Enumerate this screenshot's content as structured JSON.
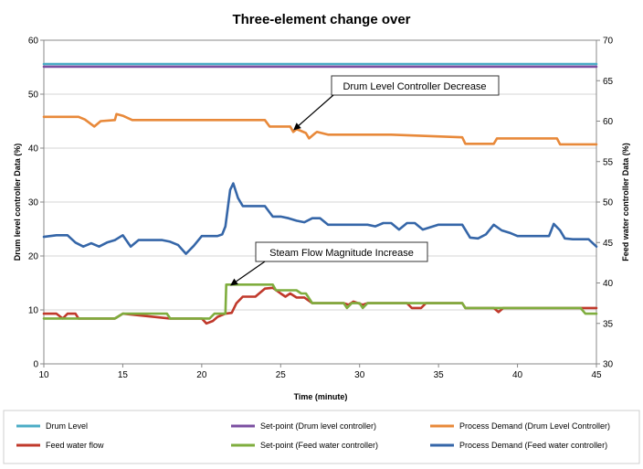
{
  "chart_data": {
    "type": "line",
    "title": "Three-element change over",
    "xlabel": "Time (minute)",
    "ylabel_left": "Drum level controller  Data (%)",
    "ylabel_right": "Feed water controller Data (%)",
    "xlim": [
      10,
      45
    ],
    "ylim_left": [
      0,
      60
    ],
    "ylim_right": [
      30,
      70
    ],
    "x_ticks": [
      10,
      15,
      20,
      25,
      30,
      35,
      40,
      45
    ],
    "y_ticks_left": [
      0,
      10,
      20,
      30,
      40,
      50,
      60
    ],
    "y_ticks_right": [
      30,
      35,
      40,
      45,
      50,
      55,
      60,
      65,
      70
    ],
    "grid": "horizontal",
    "legend_position": "bottom",
    "annotations": [
      {
        "text": "Drum Level Controller Decrease",
        "x": 25.8,
        "y": 43.3,
        "axis": "left"
      },
      {
        "text": "Steam  Flow Magnitude Increase",
        "x": 21.8,
        "y": 14.5,
        "axis": "left"
      }
    ],
    "series": [
      {
        "name": "Drum Level",
        "axis": "left",
        "color": "#4bacc6",
        "x": [
          10,
          45
        ],
        "y": [
          55.6,
          55.6
        ]
      },
      {
        "name": "Set-point (Drum level controller)",
        "axis": "left",
        "color": "#7b4fa1",
        "x": [
          10,
          45
        ],
        "y": [
          55.1,
          55.1
        ]
      },
      {
        "name": "Process Demand (Drum Level Controller)",
        "axis": "left",
        "color": "#e8893a",
        "x": [
          10,
          12.2,
          12.6,
          13.2,
          13.6,
          14.5,
          14.6,
          15.0,
          15.6,
          24.0,
          24.3,
          25.6,
          25.8,
          26.0,
          26.2,
          26.6,
          26.8,
          27.2,
          27.3,
          28.0,
          32.0,
          36.5,
          36.7,
          38.5,
          38.7,
          42.5,
          42.7,
          45
        ],
        "y": [
          45.8,
          45.8,
          45.3,
          44.0,
          45.0,
          45.2,
          46.3,
          46.0,
          45.2,
          45.2,
          44.0,
          44.0,
          43.0,
          43.5,
          43.3,
          42.8,
          41.8,
          42.8,
          43.0,
          42.5,
          42.5,
          42.0,
          40.8,
          40.8,
          41.8,
          41.8,
          40.7,
          40.7
        ],
        "values_desc": "read in left-axis units"
      },
      {
        "name": "Feed water flow",
        "axis": "right",
        "color": "#c0392b",
        "x": [
          10,
          10.8,
          11.2,
          11.5,
          12.0,
          12.2,
          14.5,
          15.0,
          18.0,
          20.0,
          20.3,
          20.7,
          21.0,
          21.5,
          21.9,
          22.2,
          22.6,
          23.4,
          24.0,
          24.5,
          25.0,
          25.3,
          25.6,
          26.0,
          26.5,
          27.0,
          29.0,
          29.3,
          29.6,
          30.2,
          30.5,
          33.0,
          33.3,
          33.9,
          34.2,
          36.5,
          36.7,
          38.5,
          38.8,
          39.1,
          45
        ],
        "y": [
          36.2,
          36.2,
          35.6,
          36.2,
          36.2,
          35.6,
          35.6,
          36.2,
          35.6,
          35.6,
          35.0,
          35.3,
          35.8,
          36.2,
          36.3,
          37.5,
          38.3,
          38.3,
          39.3,
          39.4,
          38.7,
          38.3,
          38.7,
          38.2,
          38.2,
          37.5,
          37.5,
          37.3,
          37.7,
          37.3,
          37.5,
          37.5,
          36.9,
          36.9,
          37.5,
          37.5,
          36.9,
          36.9,
          36.4,
          36.9,
          36.9
        ]
      },
      {
        "name": "Set-point (Feed water controller)",
        "axis": "right",
        "color": "#7fad3e",
        "x": [
          10,
          14.5,
          15.0,
          17.8,
          18.0,
          20.5,
          20.8,
          21.5,
          21.55,
          24.5,
          24.7,
          26.0,
          26.3,
          26.6,
          27.0,
          29.0,
          29.2,
          29.5,
          30.0,
          30.2,
          30.5,
          36.5,
          36.7,
          44.0,
          44.3,
          45
        ],
        "y": [
          35.6,
          35.6,
          36.2,
          36.2,
          35.6,
          35.6,
          36.2,
          36.2,
          39.8,
          39.8,
          39.1,
          39.1,
          38.7,
          38.7,
          37.5,
          37.5,
          36.9,
          37.5,
          37.5,
          36.9,
          37.5,
          37.5,
          36.9,
          36.9,
          36.2,
          36.2
        ]
      },
      {
        "name": "Process Demand (Feed water controller)",
        "axis": "right",
        "color": "#3566a8",
        "x": [
          10,
          10.8,
          11.5,
          12.0,
          12.5,
          13.0,
          13.5,
          14.0,
          14.5,
          15.0,
          15.5,
          16.0,
          17.5,
          18.0,
          18.5,
          19.0,
          19.5,
          20.0,
          21.0,
          21.3,
          21.5,
          21.8,
          22.0,
          22.3,
          22.6,
          23.0,
          23.5,
          24.0,
          24.5,
          25.0,
          25.5,
          26.0,
          26.5,
          27.0,
          27.5,
          28.0,
          30.5,
          31.0,
          31.5,
          32.0,
          32.5,
          33.0,
          33.5,
          34.0,
          35.0,
          36.0,
          36.5,
          37.0,
          37.5,
          38.0,
          38.5,
          39.0,
          39.5,
          40.0,
          40.5,
          41.0,
          41.5,
          42.0,
          42.3,
          42.7,
          43.0,
          43.5,
          44.0,
          44.5,
          45
        ],
        "y": [
          45.7,
          45.9,
          45.9,
          45.0,
          44.5,
          44.9,
          44.5,
          45.0,
          45.3,
          45.9,
          44.5,
          45.3,
          45.3,
          45.1,
          44.7,
          43.6,
          44.6,
          45.8,
          45.8,
          46.0,
          47.0,
          51.5,
          52.3,
          50.5,
          49.5,
          49.5,
          49.5,
          49.5,
          48.2,
          48.2,
          48.0,
          47.7,
          47.5,
          48.0,
          48.0,
          47.2,
          47.2,
          47.0,
          47.4,
          47.4,
          46.6,
          47.4,
          47.4,
          46.6,
          47.2,
          47.2,
          47.2,
          45.6,
          45.5,
          46.0,
          47.2,
          46.5,
          46.2,
          45.8,
          45.8,
          45.8,
          45.8,
          45.8,
          47.3,
          46.5,
          45.5,
          45.4,
          45.4,
          45.4,
          44.5
        ]
      }
    ]
  }
}
